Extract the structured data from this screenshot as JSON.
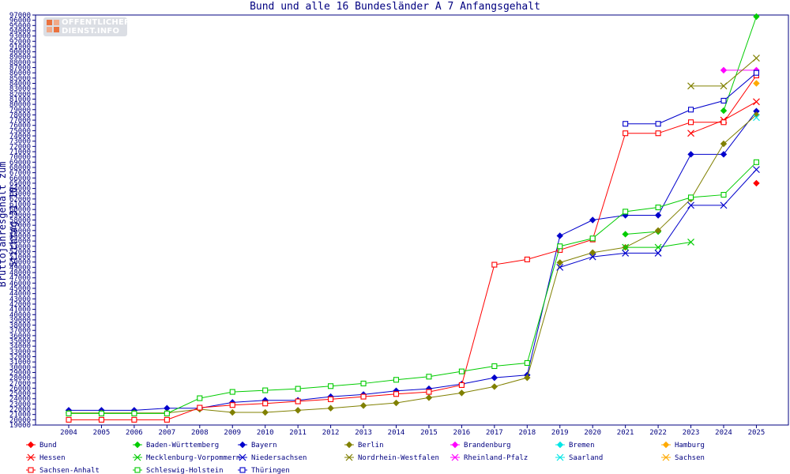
{
  "chart_data": {
    "type": "line",
    "title": "Bund und alle 16 Bundesländer A 7 Anfangsgehalt",
    "ylabel": "Bruttojahresgehalt zum Stichtag 31.10.",
    "xlabel": "",
    "ylim": [
      19000,
      97000
    ],
    "y_tick_step": 1000,
    "grid": false,
    "legend_position": "bottom",
    "x": [
      "2004",
      "2005",
      "2006",
      "2007",
      "2008",
      "2009",
      "2010",
      "2011",
      "2012",
      "2013",
      "2014",
      "2015",
      "2016",
      "2017",
      "2018",
      "2019",
      "2020",
      "2021",
      "2022",
      "2023",
      "2024",
      "2025"
    ],
    "series": [
      {
        "name": "Bund",
        "color": "#ff0000",
        "marker": "diamond",
        "values": [
          null,
          null,
          null,
          null,
          null,
          null,
          null,
          null,
          null,
          null,
          null,
          null,
          null,
          null,
          null,
          null,
          null,
          null,
          null,
          null,
          null,
          65000
        ]
      },
      {
        "name": "Baden-Württemberg",
        "color": "#00cc00",
        "marker": "diamond",
        "values": [
          null,
          null,
          null,
          null,
          null,
          null,
          null,
          null,
          null,
          null,
          null,
          null,
          null,
          null,
          null,
          null,
          null,
          55300,
          55800,
          null,
          78800,
          96700
        ]
      },
      {
        "name": "Bayern",
        "color": "#0000cc",
        "marker": "diamond",
        "values": [
          21800,
          21800,
          21800,
          22200,
          22200,
          23300,
          23700,
          23700,
          24400,
          24800,
          25500,
          25900,
          26800,
          28000,
          28500,
          55000,
          58000,
          58900,
          58900,
          70500,
          70500,
          78700
        ]
      },
      {
        "name": "Berlin",
        "color": "#808000",
        "marker": "diamond",
        "values": [
          21300,
          21300,
          21300,
          21300,
          22000,
          21400,
          21400,
          21800,
          22200,
          22700,
          23200,
          24200,
          25100,
          26300,
          28000,
          49900,
          51800,
          52800,
          56000,
          62000,
          72500,
          78000
        ]
      },
      {
        "name": "Brandenburg",
        "color": "#ff00ff",
        "marker": "diamond",
        "values": [
          null,
          null,
          null,
          null,
          null,
          null,
          null,
          null,
          null,
          null,
          null,
          null,
          null,
          null,
          null,
          null,
          null,
          null,
          null,
          null,
          86500,
          86500
        ]
      },
      {
        "name": "Bremen",
        "color": "#00e6e6",
        "marker": "diamond",
        "values": [
          null,
          null,
          null,
          null,
          null,
          null,
          null,
          null,
          null,
          null,
          null,
          null,
          null,
          null,
          null,
          null,
          null,
          null,
          null,
          null,
          null,
          null
        ]
      },
      {
        "name": "Hamburg",
        "color": "#ffaa00",
        "marker": "diamond",
        "values": [
          null,
          null,
          null,
          null,
          null,
          null,
          null,
          null,
          null,
          null,
          null,
          null,
          null,
          null,
          null,
          null,
          null,
          null,
          null,
          null,
          null,
          84000
        ]
      },
      {
        "name": "Hessen",
        "color": "#ff0000",
        "marker": "x",
        "values": [
          null,
          null,
          null,
          null,
          null,
          null,
          null,
          null,
          null,
          null,
          null,
          null,
          null,
          null,
          null,
          null,
          null,
          null,
          null,
          74500,
          77000,
          80500
        ]
      },
      {
        "name": "Mecklenburg-Vorpommern",
        "color": "#00cc00",
        "marker": "x",
        "values": [
          null,
          null,
          null,
          null,
          null,
          null,
          null,
          null,
          null,
          null,
          null,
          null,
          null,
          null,
          null,
          null,
          null,
          52800,
          52800,
          53800,
          null,
          null
        ]
      },
      {
        "name": "Niedersachsen",
        "color": "#0000cc",
        "marker": "x",
        "values": [
          null,
          null,
          null,
          null,
          null,
          null,
          null,
          null,
          null,
          null,
          null,
          null,
          null,
          null,
          null,
          49000,
          51000,
          51700,
          51700,
          60800,
          60800,
          67600
        ]
      },
      {
        "name": "Nordrhein-Westfalen",
        "color": "#808000",
        "marker": "x",
        "values": [
          null,
          null,
          null,
          null,
          null,
          null,
          null,
          null,
          null,
          null,
          null,
          null,
          null,
          null,
          null,
          null,
          null,
          null,
          null,
          83500,
          83500,
          88800
        ]
      },
      {
        "name": "Rheinland-Pfalz",
        "color": "#ff00ff",
        "marker": "x",
        "values": [
          null,
          null,
          null,
          null,
          null,
          null,
          null,
          null,
          null,
          null,
          null,
          null,
          null,
          null,
          null,
          null,
          null,
          null,
          null,
          null,
          null,
          null
        ]
      },
      {
        "name": "Saarland",
        "color": "#00e6e6",
        "marker": "x",
        "values": [
          null,
          null,
          null,
          null,
          null,
          null,
          null,
          null,
          null,
          null,
          null,
          null,
          null,
          null,
          null,
          null,
          null,
          null,
          null,
          null,
          null,
          77500
        ]
      },
      {
        "name": "Sachsen",
        "color": "#ffaa00",
        "marker": "x",
        "values": [
          null,
          null,
          null,
          null,
          null,
          null,
          null,
          null,
          null,
          null,
          null,
          null,
          null,
          null,
          null,
          null,
          null,
          null,
          null,
          null,
          null,
          null
        ]
      },
      {
        "name": "Sachsen-Anhalt",
        "color": "#ff0000",
        "marker": "square",
        "values": [
          20000,
          20000,
          20000,
          20000,
          22300,
          22800,
          23100,
          23500,
          23900,
          24400,
          24900,
          25300,
          26600,
          49500,
          50500,
          52300,
          54300,
          74500,
          74500,
          76600,
          76600,
          85500
        ]
      },
      {
        "name": "Schleswig-Holstein",
        "color": "#00cc00",
        "marker": "square",
        "values": [
          21200,
          21200,
          21200,
          21200,
          24100,
          25300,
          25600,
          25900,
          26400,
          26900,
          27600,
          28200,
          29200,
          30200,
          30800,
          53000,
          54500,
          59600,
          60400,
          62300,
          62800,
          69000
        ]
      },
      {
        "name": "Thüringen",
        "color": "#0000cc",
        "marker": "square",
        "values": [
          null,
          null,
          null,
          null,
          null,
          null,
          null,
          null,
          null,
          null,
          null,
          null,
          null,
          null,
          null,
          null,
          null,
          76300,
          76300,
          79000,
          80700,
          86000
        ]
      }
    ]
  }
}
